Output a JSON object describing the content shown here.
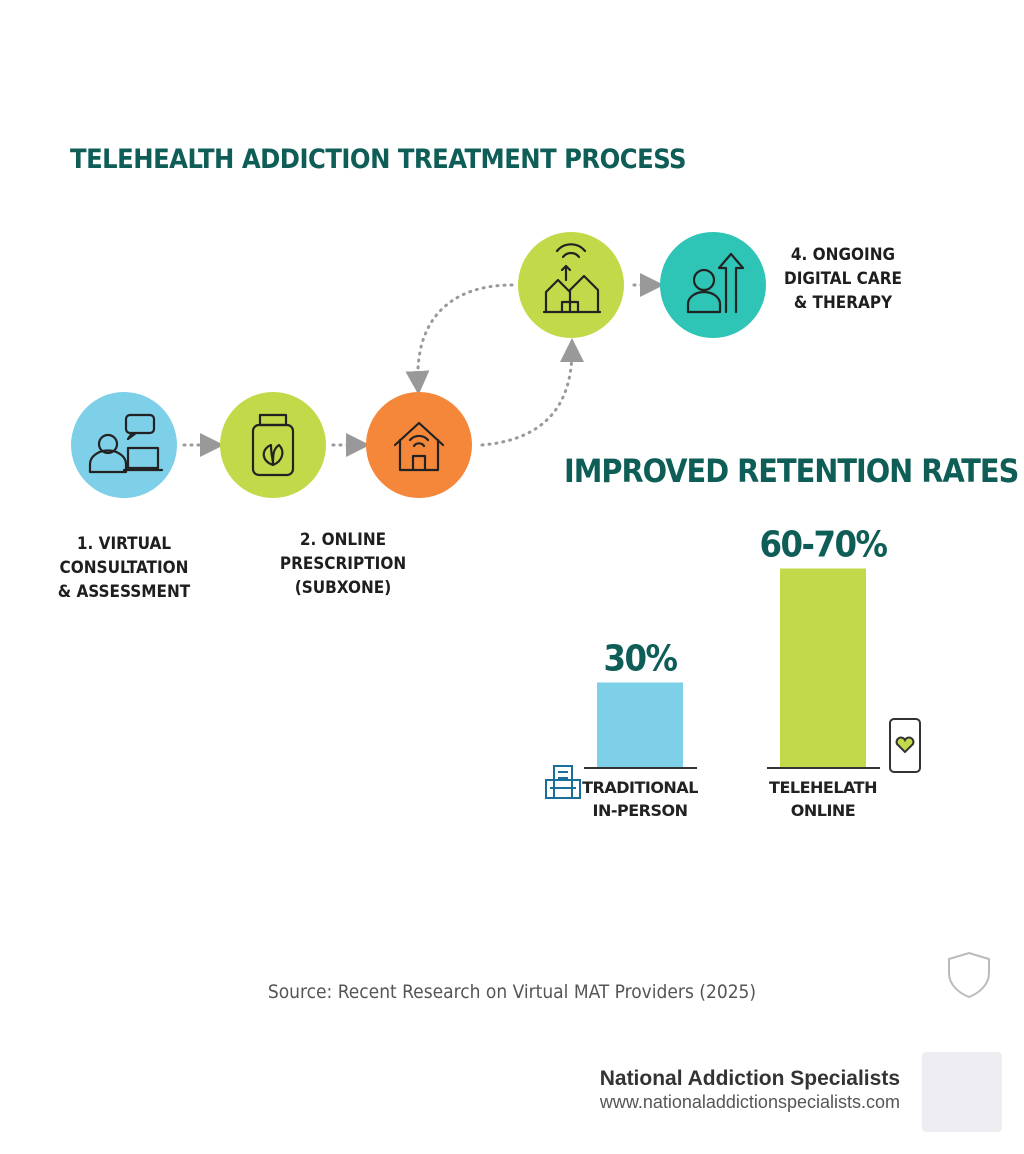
{
  "title": "TELEHEALTH ADDICTION TREATMENT PROCESS",
  "steps": [
    {
      "label": [
        "1. VIRTUAL",
        "CONSULTATION",
        "& ASSESSMENT"
      ]
    },
    {
      "label": [
        "2. ONLINE",
        "PRESCRIPTION",
        "(SUBXONE)"
      ]
    },
    {
      "label": []
    },
    {
      "label": []
    },
    {
      "label": [
        "4. ONGOING",
        "DIGITAL CARE",
        "& THERAPY"
      ]
    }
  ],
  "chart_data": {
    "type": "bar",
    "title": "IMPROVED RETENTION RATES",
    "categories": [
      "TRADITIONAL IN-PERSON",
      "TELEHELATH ONLINE"
    ],
    "values": [
      30,
      70
    ],
    "value_labels": [
      "30%",
      "60-70%"
    ],
    "colors": [
      "#7ecfe8",
      "#c2da4a"
    ]
  },
  "source": "Source: Recent Research on Virtual MAT Providers (2025)",
  "footer": {
    "name": "National Addiction Specialists",
    "url": "www.nationaladdictionspecialists.com"
  }
}
